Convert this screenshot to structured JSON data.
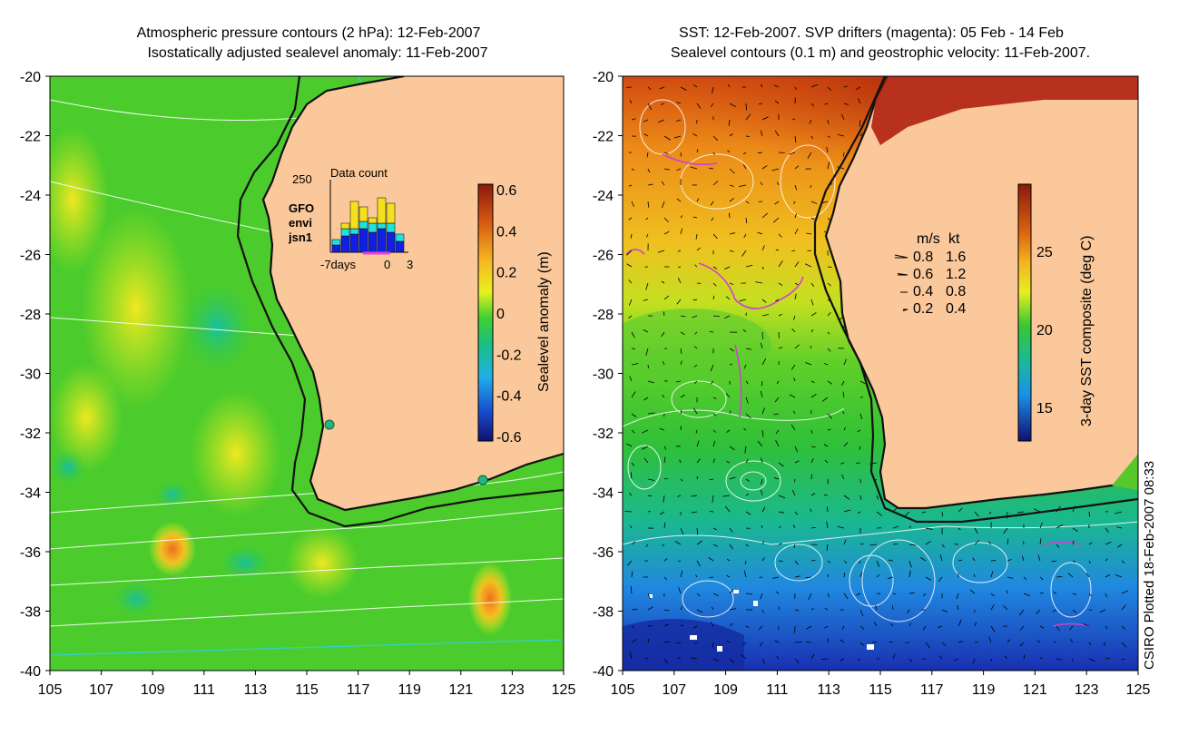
{
  "left_panel": {
    "title_line1": "Atmospheric pressure contours (2 hPa): 12-Feb-2007",
    "title_line2": "Isostatically adjusted sealevel anomaly: 11-Feb-2007",
    "colorbar_label": "Sealevel anomaly (m)",
    "colorbar_ticks": [
      "0.6",
      "0.4",
      "0.2",
      "0",
      "-0.2",
      "-0.4",
      "-0.6"
    ],
    "inset": {
      "title": "Data count",
      "ymax_label": "250",
      "legend": [
        {
          "label": "GFO",
          "color": "#f5e020"
        },
        {
          "label": "envi",
          "color": "#20e0e0"
        },
        {
          "label": "jsn1",
          "color": "#1020e0"
        }
      ],
      "x_left_label": "-7days",
      "x_mid_label": "0",
      "x_right_label": "3"
    }
  },
  "right_panel": {
    "title_line1": "SST: 12-Feb-2007. SVP drifters (magenta): 05 Feb - 14 Feb",
    "title_line2": "Sealevel contours (0.1 m) and geostrophic velocity: 11-Feb-2007.",
    "colorbar_label": "3-day SST composite (deg C)",
    "colorbar_ticks": [
      "25",
      "20",
      "15"
    ],
    "velocity_legend": {
      "header_ms": "m/s",
      "header_kt": "kt",
      "rows": [
        {
          "ms": "0.8",
          "kt": "1.6"
        },
        {
          "ms": "0.6",
          "kt": "1.2"
        },
        {
          "ms": "0.4",
          "kt": "0.8"
        },
        {
          "ms": "0.2",
          "kt": "0.4"
        }
      ]
    }
  },
  "axes": {
    "x_ticks": [
      "105",
      "107",
      "109",
      "111",
      "113",
      "115",
      "117",
      "119",
      "121",
      "123",
      "125"
    ],
    "y_ticks": [
      "-20",
      "-22",
      "-24",
      "-26",
      "-28",
      "-30",
      "-32",
      "-34",
      "-36",
      "-38",
      "-40"
    ]
  },
  "credit": "CSIRO Plotted 18-Feb-2007 08:33",
  "colors": {
    "land": "#fac89a",
    "coast": "#111111",
    "ocean_green": "#3ccc2a",
    "sst_warm": "#cc3a0a",
    "sst_cold": "#1a50d0",
    "drifter": "#d040d0"
  }
}
